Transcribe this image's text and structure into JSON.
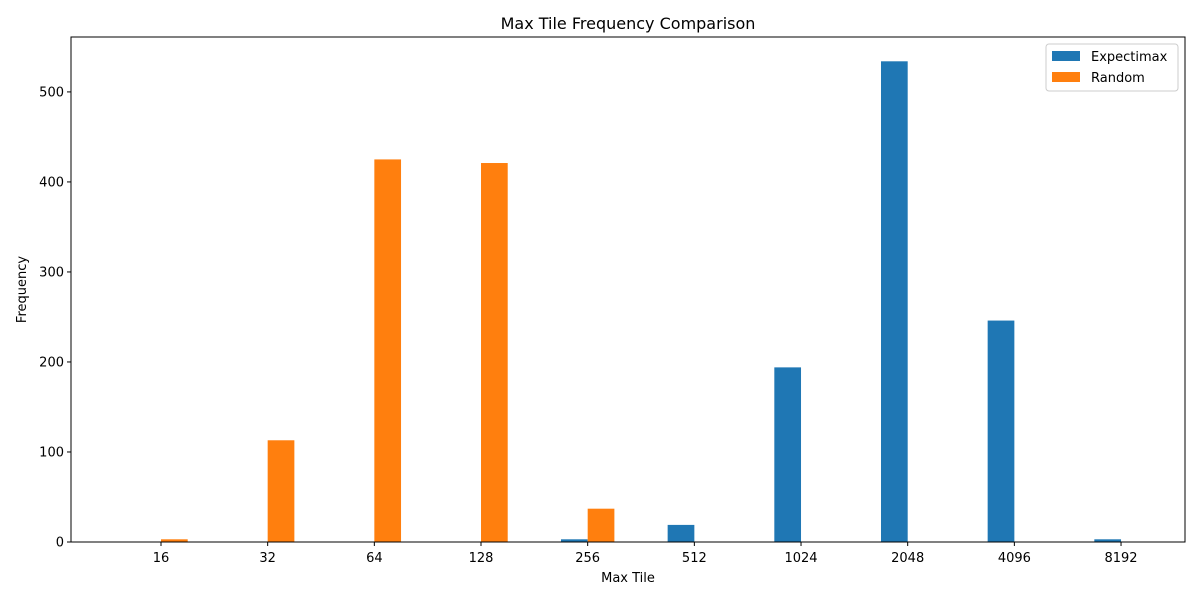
{
  "chart_data": {
    "type": "bar",
    "title": "Max Tile Frequency Comparison",
    "xlabel": "Max Tile",
    "ylabel": "Frequency",
    "categories": [
      "16",
      "32",
      "64",
      "128",
      "256",
      "512",
      "1024",
      "2048",
      "4096",
      "8192"
    ],
    "series": [
      {
        "name": "Expectimax",
        "color": "#1f77b4",
        "values": [
          0,
          0,
          0,
          0,
          3,
          19,
          194,
          534,
          246,
          3
        ]
      },
      {
        "name": "Random",
        "color": "#ff7f0e",
        "values": [
          3,
          113,
          425,
          421,
          37,
          0,
          0,
          0,
          0,
          0
        ]
      }
    ],
    "ylim": [
      0,
      561
    ],
    "yticks": [
      0,
      100,
      200,
      300,
      400,
      500
    ],
    "grid": false,
    "legend_position": "top-right"
  }
}
